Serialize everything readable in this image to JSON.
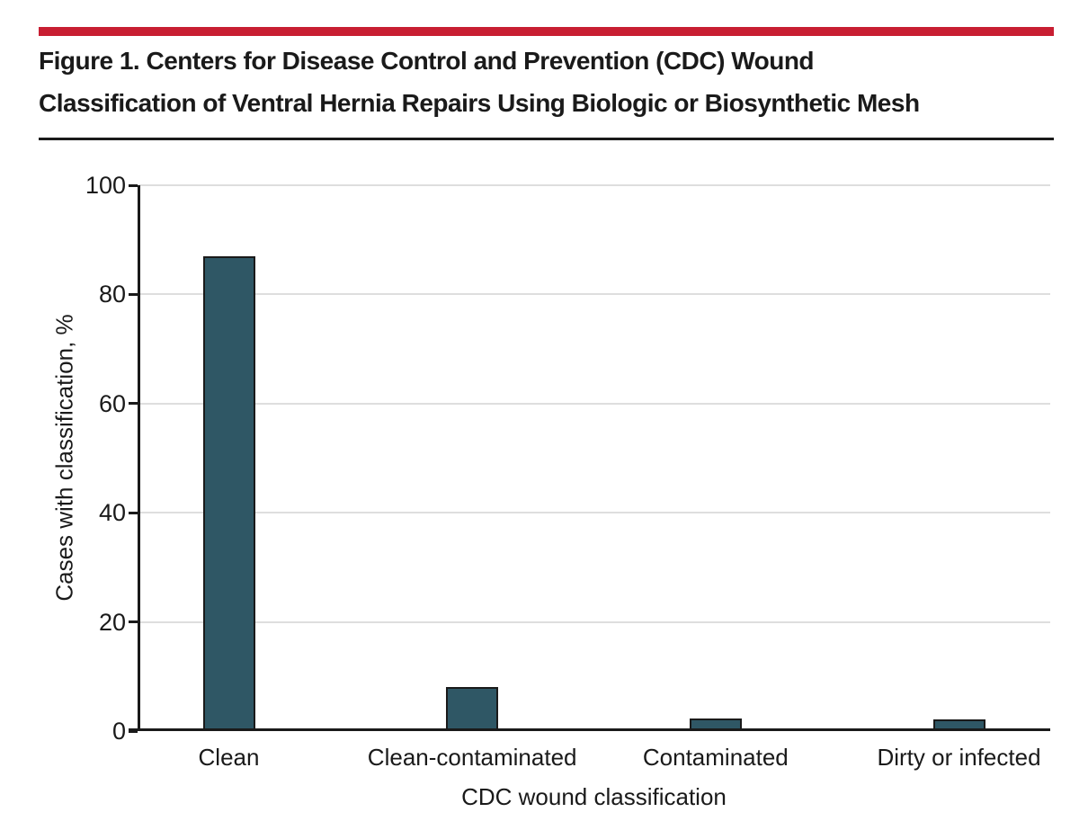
{
  "figure": {
    "title_line1": "Figure 1. Centers for Disease Control and Prevention (CDC) Wound",
    "title_line2": "Classification of Ventral Hernia Repairs Using Biologic or Biosynthetic Mesh"
  },
  "colors": {
    "accent_red": "#C81E32",
    "bar_fill": "#2F5765",
    "bar_border": "#1A1A1A",
    "gridline": "#DEDEDE",
    "axis": "#1A1A1A",
    "text": "#1A1A1A"
  },
  "chart_data": {
    "type": "bar",
    "title": "Figure 1. Centers for Disease Control and Prevention (CDC) Wound Classification of Ventral Hernia Repairs Using Biologic or Biosynthetic Mesh",
    "categories": [
      "Clean",
      "Clean-contaminated",
      "Contaminated",
      "Dirty or infected"
    ],
    "values": [
      87,
      8,
      2.3,
      2.1
    ],
    "xlabel": "CDC wound classification",
    "ylabel": "Cases with classification, %",
    "ylim": [
      0,
      100
    ],
    "yticks": [
      0,
      20,
      40,
      60,
      80,
      100
    ],
    "grid": true,
    "legend": false,
    "bar_color": "#2F5765"
  }
}
